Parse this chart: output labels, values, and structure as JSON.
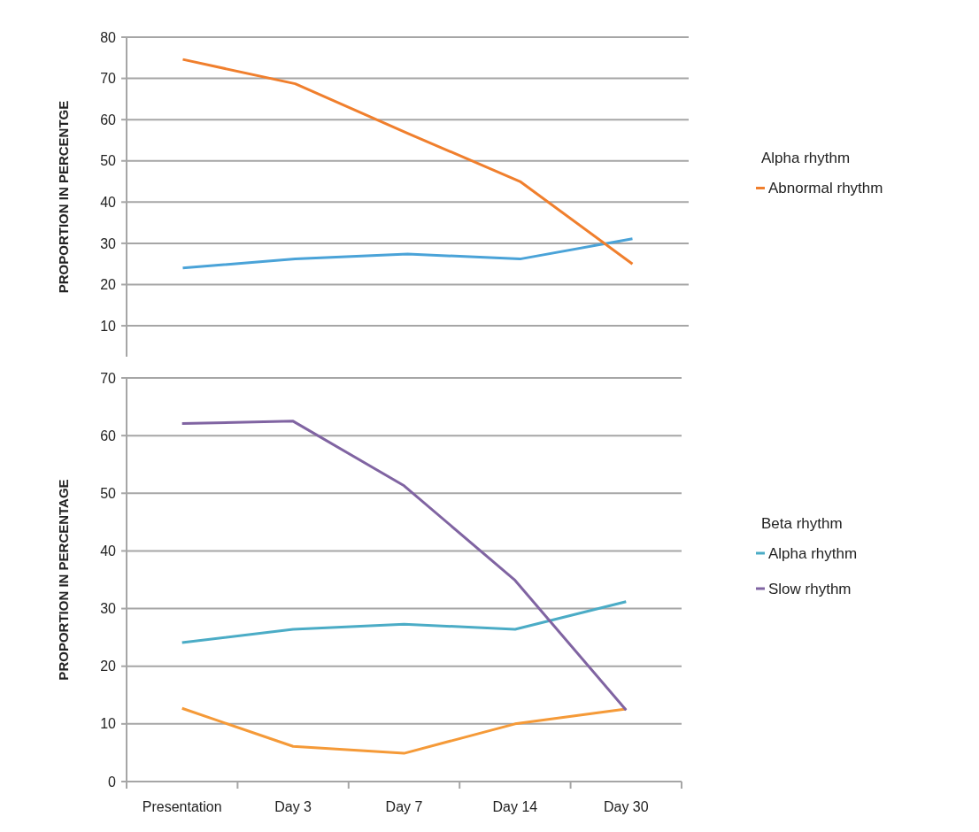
{
  "chart_data": [
    {
      "type": "line",
      "ylabel": "PROPORTION IN PERCENTGE",
      "legend_title": "Alpha rhythm",
      "categories": [
        null,
        null,
        null,
        null,
        null
      ],
      "ylim": [
        2.5,
        80
      ],
      "yticks": [
        10,
        20,
        30,
        40,
        50,
        60,
        70,
        80
      ],
      "grid": "y",
      "legend": "right",
      "tick_labels": "y",
      "series": [
        {
          "color": "#4aa3d8",
          "values": [
            24,
            26.2,
            27.4,
            26.2,
            31.1
          ]
        },
        {
          "name": "Abnormal rhythm",
          "color": "#f07f2d",
          "values": [
            74.6,
            68.7,
            56.7,
            45,
            25
          ]
        }
      ]
    },
    {
      "type": "line",
      "ylabel": "PROPORTION IN PERCENTAGE",
      "legend_title": "Beta rhythm",
      "categories": [
        "Presentation",
        "Day 3",
        "Day 7",
        "Day 14",
        "Day 30"
      ],
      "ylim": [
        0,
        70
      ],
      "yticks": [
        0,
        10,
        20,
        30,
        40,
        50,
        60,
        70
      ],
      "grid": "y",
      "legend": "right",
      "series": [
        {
          "color": "#f59a38",
          "values": [
            12.7,
            6.1,
            4.9,
            10,
            12.6
          ]
        },
        {
          "name": "Alpha rhythm",
          "color": "#4bacc6",
          "values": [
            24.1,
            26.4,
            27.3,
            26.4,
            31.2
          ]
        },
        {
          "name": "Slow rhythm",
          "color": "#8064a2",
          "values": [
            62.1,
            62.5,
            51.3,
            34.9,
            12.4
          ]
        }
      ]
    }
  ]
}
